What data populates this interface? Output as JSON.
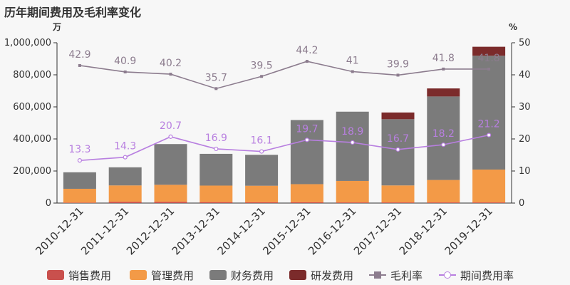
{
  "title": "历年期间费用及毛利率变化",
  "legend_items": [
    "销售费用",
    "管理费用",
    "财务费用",
    "研发费用",
    "毛利率",
    "期间费用率"
  ],
  "chart_data": {
    "type": "bar",
    "categories": [
      "2010-12-31",
      "2011-12-31",
      "2012-12-31",
      "2013-12-31",
      "2014-12-31",
      "2015-12-31",
      "2016-12-31",
      "2017-12-31",
      "2018-12-31",
      "2019-12-31"
    ],
    "y_left": {
      "unit": "万",
      "lim": [
        0,
        1000000
      ],
      "ticks": [
        "0",
        "200,000",
        "400,000",
        "600,000",
        "800,000",
        "1,000,000"
      ]
    },
    "y_right": {
      "unit": "%",
      "lim": [
        0,
        50
      ],
      "ticks": [
        "0",
        "10",
        "20",
        "30",
        "40",
        "50"
      ]
    },
    "bar_series": [
      {
        "name": "销售费用",
        "color": "#c9504d",
        "values": [
          3000,
          8000,
          8000,
          6000,
          5000,
          5000,
          4000,
          4000,
          4000,
          4000
        ]
      },
      {
        "name": "管理费用",
        "color": "#f39a47",
        "values": [
          86000,
          102000,
          106000,
          103000,
          103000,
          113000,
          134000,
          106000,
          140000,
          205000
        ]
      },
      {
        "name": "财务费用",
        "color": "#7b7b7b",
        "values": [
          103000,
          113000,
          254000,
          198000,
          193000,
          400000,
          432000,
          413000,
          521000,
          710000
        ]
      },
      {
        "name": "研发费用",
        "color": "#7b2b2b",
        "values": [
          0,
          0,
          0,
          0,
          0,
          0,
          0,
          42000,
          50000,
          56000
        ]
      }
    ],
    "line_series": [
      {
        "name": "毛利率",
        "color": "#8c7c8e",
        "values": [
          42.9,
          40.9,
          40.2,
          35.7,
          39.5,
          44.2,
          41,
          39.9,
          41.8,
          41.8
        ],
        "labels": [
          "42.9",
          "40.9",
          "40.2",
          "35.7",
          "39.5",
          "44.2",
          "41",
          "39.9",
          "41.8",
          "41.8"
        ]
      },
      {
        "name": "期间费用率",
        "color": "#b87fe0",
        "values": [
          13.3,
          14.3,
          20.7,
          16.9,
          16.1,
          19.7,
          18.9,
          16.7,
          18.2,
          21.2
        ],
        "labels": [
          "13.3",
          "14.3",
          "20.7",
          "16.9",
          "16.1",
          "19.7",
          "18.9",
          "16.7",
          "18.2",
          "21.2"
        ]
      }
    ],
    "grid": false,
    "legend_position": "bottom"
  }
}
